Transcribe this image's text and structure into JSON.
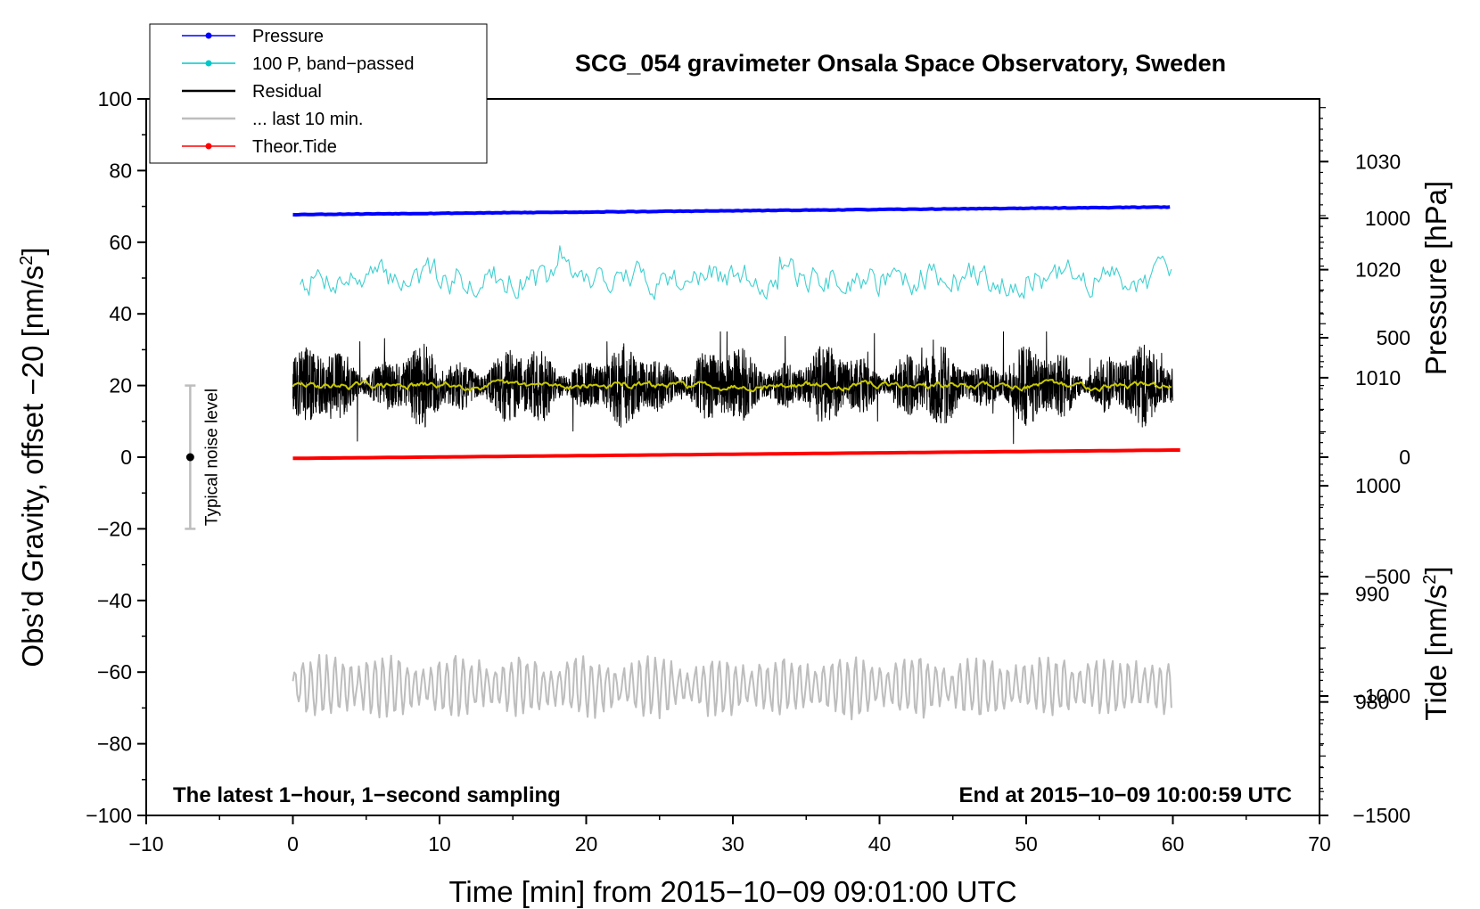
{
  "chart_data": {
    "type": "line",
    "title": "SCG_054 gravimeter Onsala Space Observatory, Sweden",
    "xlabel": "Time [min] from 2015−10−09 09:01:00 UTC",
    "ylabel_left_prefix": "Obs’d Gravity, offset −20 [nm/s",
    "ylabel_left_sup": "2",
    "ylabel_left_suffix": "]",
    "ylabel_right_pressure": "Pressure [hPa]",
    "ylabel_right_tide_prefix": "Tide [nm/s",
    "ylabel_right_tide_sup": "2",
    "ylabel_right_tide_suffix": "]",
    "xlim": [
      -10,
      70
    ],
    "ylim": [
      -100,
      100
    ],
    "pressure_lim": [
      969.5,
      1035.8
    ],
    "tide_lim": [
      -1500,
      1500
    ],
    "x_ticks": [
      -10,
      0,
      10,
      20,
      30,
      40,
      50,
      60,
      70
    ],
    "x_tick_labels": [
      "−10",
      "0",
      "10",
      "20",
      "30",
      "40",
      "50",
      "60",
      "70"
    ],
    "y_ticks": [
      -100,
      -80,
      -60,
      -40,
      -20,
      0,
      20,
      40,
      60,
      80,
      100
    ],
    "y_tick_labels": [
      "−100",
      "−80",
      "−60",
      "−40",
      "−20",
      "0",
      "20",
      "40",
      "60",
      "80",
      "100"
    ],
    "pressure_ticks": [
      980,
      990,
      1000,
      1010,
      1020,
      1030
    ],
    "pressure_tick_labels": [
      "980",
      "990",
      "1000",
      "1010",
      "1020",
      "1030"
    ],
    "tide_ticks": [
      -1500,
      -1000,
      -500,
      0,
      500,
      1000
    ],
    "tide_tick_labels": [
      "−1500",
      "−1000",
      "−500",
      "0",
      "500",
      "1000"
    ],
    "annotation_left": "The latest 1−hour, 1−second sampling",
    "annotation_right": "End at 2015−10−09 10:00:59 UTC",
    "noise_bar": {
      "label": "Typical noise level",
      "x": -7,
      "center": 0,
      "low": -20,
      "high": 20
    },
    "legend_position": "top-left",
    "legend": [
      {
        "label": "Pressure",
        "color": "#0000ff",
        "marker": true
      },
      {
        "label": "100 P, band−passed",
        "color": "#00c8c8",
        "marker": true
      },
      {
        "label": "Residual",
        "color": "#000000",
        "marker": false
      },
      {
        "label": "... last 10 min.",
        "color": "#bdbdbd",
        "marker": false
      },
      {
        "label": "Theor.Tide",
        "color": "#ff0000",
        "marker": true
      }
    ],
    "series": [
      {
        "name": "Pressure",
        "axis": "pressure_hPa",
        "color": "#0000ff",
        "x_range": [
          0,
          60
        ],
        "values_start_end": [
          1025.1,
          1025.8
        ]
      },
      {
        "name": "100 P, band−passed",
        "axis": "gravity_nm_s2",
        "color": "#00c8c8",
        "x_range": [
          0.5,
          60
        ],
        "mean": 50,
        "range": [
          40,
          59
        ]
      },
      {
        "name": "Residual",
        "axis": "gravity_nm_s2",
        "color": "#000000",
        "x_range": [
          0,
          60
        ],
        "mean": 20,
        "range": [
          2,
          35
        ]
      },
      {
        "name": "Residual smoothed",
        "axis": "gravity_nm_s2",
        "color": "#c8c800",
        "x_range": [
          0,
          60
        ],
        "mean": 20
      },
      {
        "name": "... last 10 min.",
        "axis": "gravity_nm_s2",
        "color": "#bdbdbd",
        "x_range": [
          0,
          60
        ],
        "mean": -64,
        "range": [
          -75,
          -47
        ]
      },
      {
        "name": "Theor.Tide",
        "axis": "tide_nm_s2",
        "color": "#ff0000",
        "x_range": [
          0,
          60.5
        ],
        "values_start_end": [
          -5,
          30
        ]
      }
    ],
    "colors": {
      "pressure": "#0000ff",
      "bandpassed": "#40d0d0",
      "residual": "#000000",
      "smoothed": "#c8c800",
      "last10": "#bdbdbd",
      "tide": "#ff0000",
      "noise_bar": "#bdbdbd"
    }
  }
}
